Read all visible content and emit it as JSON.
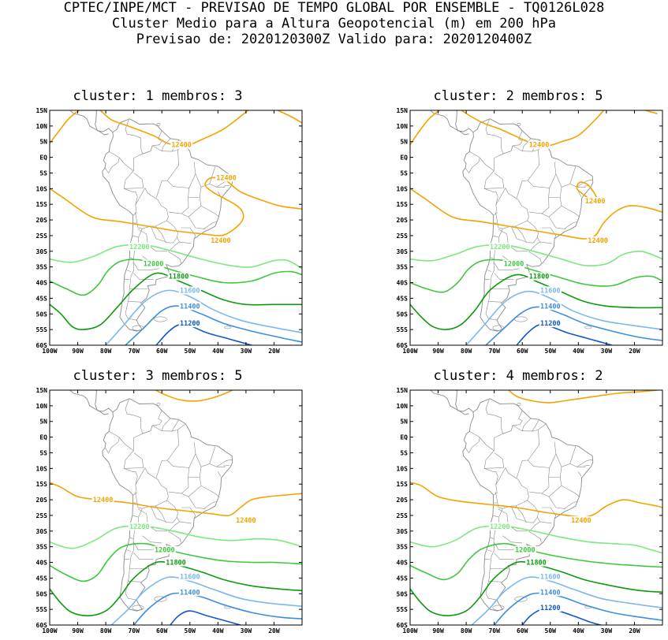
{
  "header": {
    "line1": "CPTEC/INPE/MCT - PREVISAO DE TEMPO GLOBAL POR ENSEMBLE - TQ0126L028",
    "line2": "Cluster Medio para a Altura Geopotencial (m) em 200 hPa",
    "line3": "Previsao de: 2020120300Z   Valido para: 2020120400Z"
  },
  "axes": {
    "lat_labels": [
      "15N",
      "10N",
      "5N",
      "EQ",
      "5S",
      "10S",
      "15S",
      "20S",
      "25S",
      "30S",
      "35S",
      "40S",
      "45S",
      "50S",
      "55S",
      "60S"
    ],
    "lon_labels": [
      "100W",
      "90W",
      "80W",
      "70W",
      "60W",
      "50W",
      "40W",
      "30W",
      "20W"
    ],
    "lat_range": [
      -60,
      15
    ],
    "lon_range": [
      -100,
      -10
    ]
  },
  "colors": {
    "12400": "#f4a300",
    "12200": "#7de87d",
    "12000": "#3cc83c",
    "11800": "#0d9a0d",
    "11600": "#7ab8f0",
    "11400": "#3c8ee0",
    "11200": "#1258c8",
    "coast": "#8a8a8a"
  },
  "panels": [
    {
      "title": "cluster: 1   membros: 3",
      "labels": [
        {
          "text": "12400",
          "lon": -53,
          "lat": 4,
          "level": "12400"
        },
        {
          "text": "12400",
          "lon": -37,
          "lat": -6.5,
          "level": "12400"
        },
        {
          "text": "12400",
          "lon": -39,
          "lat": -26.5,
          "level": "12400"
        },
        {
          "text": "12200",
          "lon": -68,
          "lat": -28.5,
          "level": "12200"
        },
        {
          "text": "12000",
          "lon": -63,
          "lat": -34,
          "level": "12000"
        },
        {
          "text": "11800",
          "lon": -54,
          "lat": -38,
          "level": "11800"
        },
        {
          "text": "11600",
          "lon": -50,
          "lat": -42.5,
          "level": "11600"
        },
        {
          "text": "11400",
          "lon": -50,
          "lat": -47.5,
          "level": "11400"
        },
        {
          "text": "11200",
          "lon": -50,
          "lat": -53,
          "level": "11200"
        }
      ]
    },
    {
      "title": "cluster: 2   membros: 5",
      "labels": [
        {
          "text": "12400",
          "lon": -54,
          "lat": 4,
          "level": "12400"
        },
        {
          "text": "12400",
          "lon": -34,
          "lat": -14,
          "level": "12400"
        },
        {
          "text": "12400",
          "lon": -33,
          "lat": -26.5,
          "level": "12400"
        },
        {
          "text": "12200",
          "lon": -68,
          "lat": -28.5,
          "level": "12200"
        },
        {
          "text": "12000",
          "lon": -63,
          "lat": -34,
          "level": "12000"
        },
        {
          "text": "11800",
          "lon": -54,
          "lat": -38,
          "level": "11800"
        },
        {
          "text": "11600",
          "lon": -50,
          "lat": -42.5,
          "level": "11600"
        },
        {
          "text": "11400",
          "lon": -50,
          "lat": -47.5,
          "level": "11400"
        },
        {
          "text": "11200",
          "lon": -50,
          "lat": -53,
          "level": "11200"
        }
      ]
    },
    {
      "title": "cluster: 3   membros: 5",
      "labels": [
        {
          "text": "12400",
          "lon": -81,
          "lat": -20,
          "level": "12400"
        },
        {
          "text": "12400",
          "lon": -30,
          "lat": -26.5,
          "level": "12400"
        },
        {
          "text": "12200",
          "lon": -68,
          "lat": -28.5,
          "level": "12200"
        },
        {
          "text": "12000",
          "lon": -59,
          "lat": -36,
          "level": "12000"
        },
        {
          "text": "11800",
          "lon": -55,
          "lat": -40,
          "level": "11800"
        },
        {
          "text": "11600",
          "lon": -50,
          "lat": -44.5,
          "level": "11600"
        },
        {
          "text": "11400",
          "lon": -50,
          "lat": -49.5,
          "level": "11400"
        }
      ]
    },
    {
      "title": "cluster: 4   membros: 2",
      "labels": [
        {
          "text": "12400",
          "lon": -39,
          "lat": -26.5,
          "level": "12400"
        },
        {
          "text": "12200",
          "lon": -68,
          "lat": -28.5,
          "level": "12200"
        },
        {
          "text": "12000",
          "lon": -59,
          "lat": -36,
          "level": "12000"
        },
        {
          "text": "11800",
          "lon": -55,
          "lat": -40,
          "level": "11800"
        },
        {
          "text": "11600",
          "lon": -50,
          "lat": -44.5,
          "level": "11600"
        },
        {
          "text": "11400",
          "lon": -50,
          "lat": -49.5,
          "level": "11400"
        },
        {
          "text": "11200",
          "lon": -50,
          "lat": -54.5,
          "level": "11200"
        }
      ]
    }
  ]
}
